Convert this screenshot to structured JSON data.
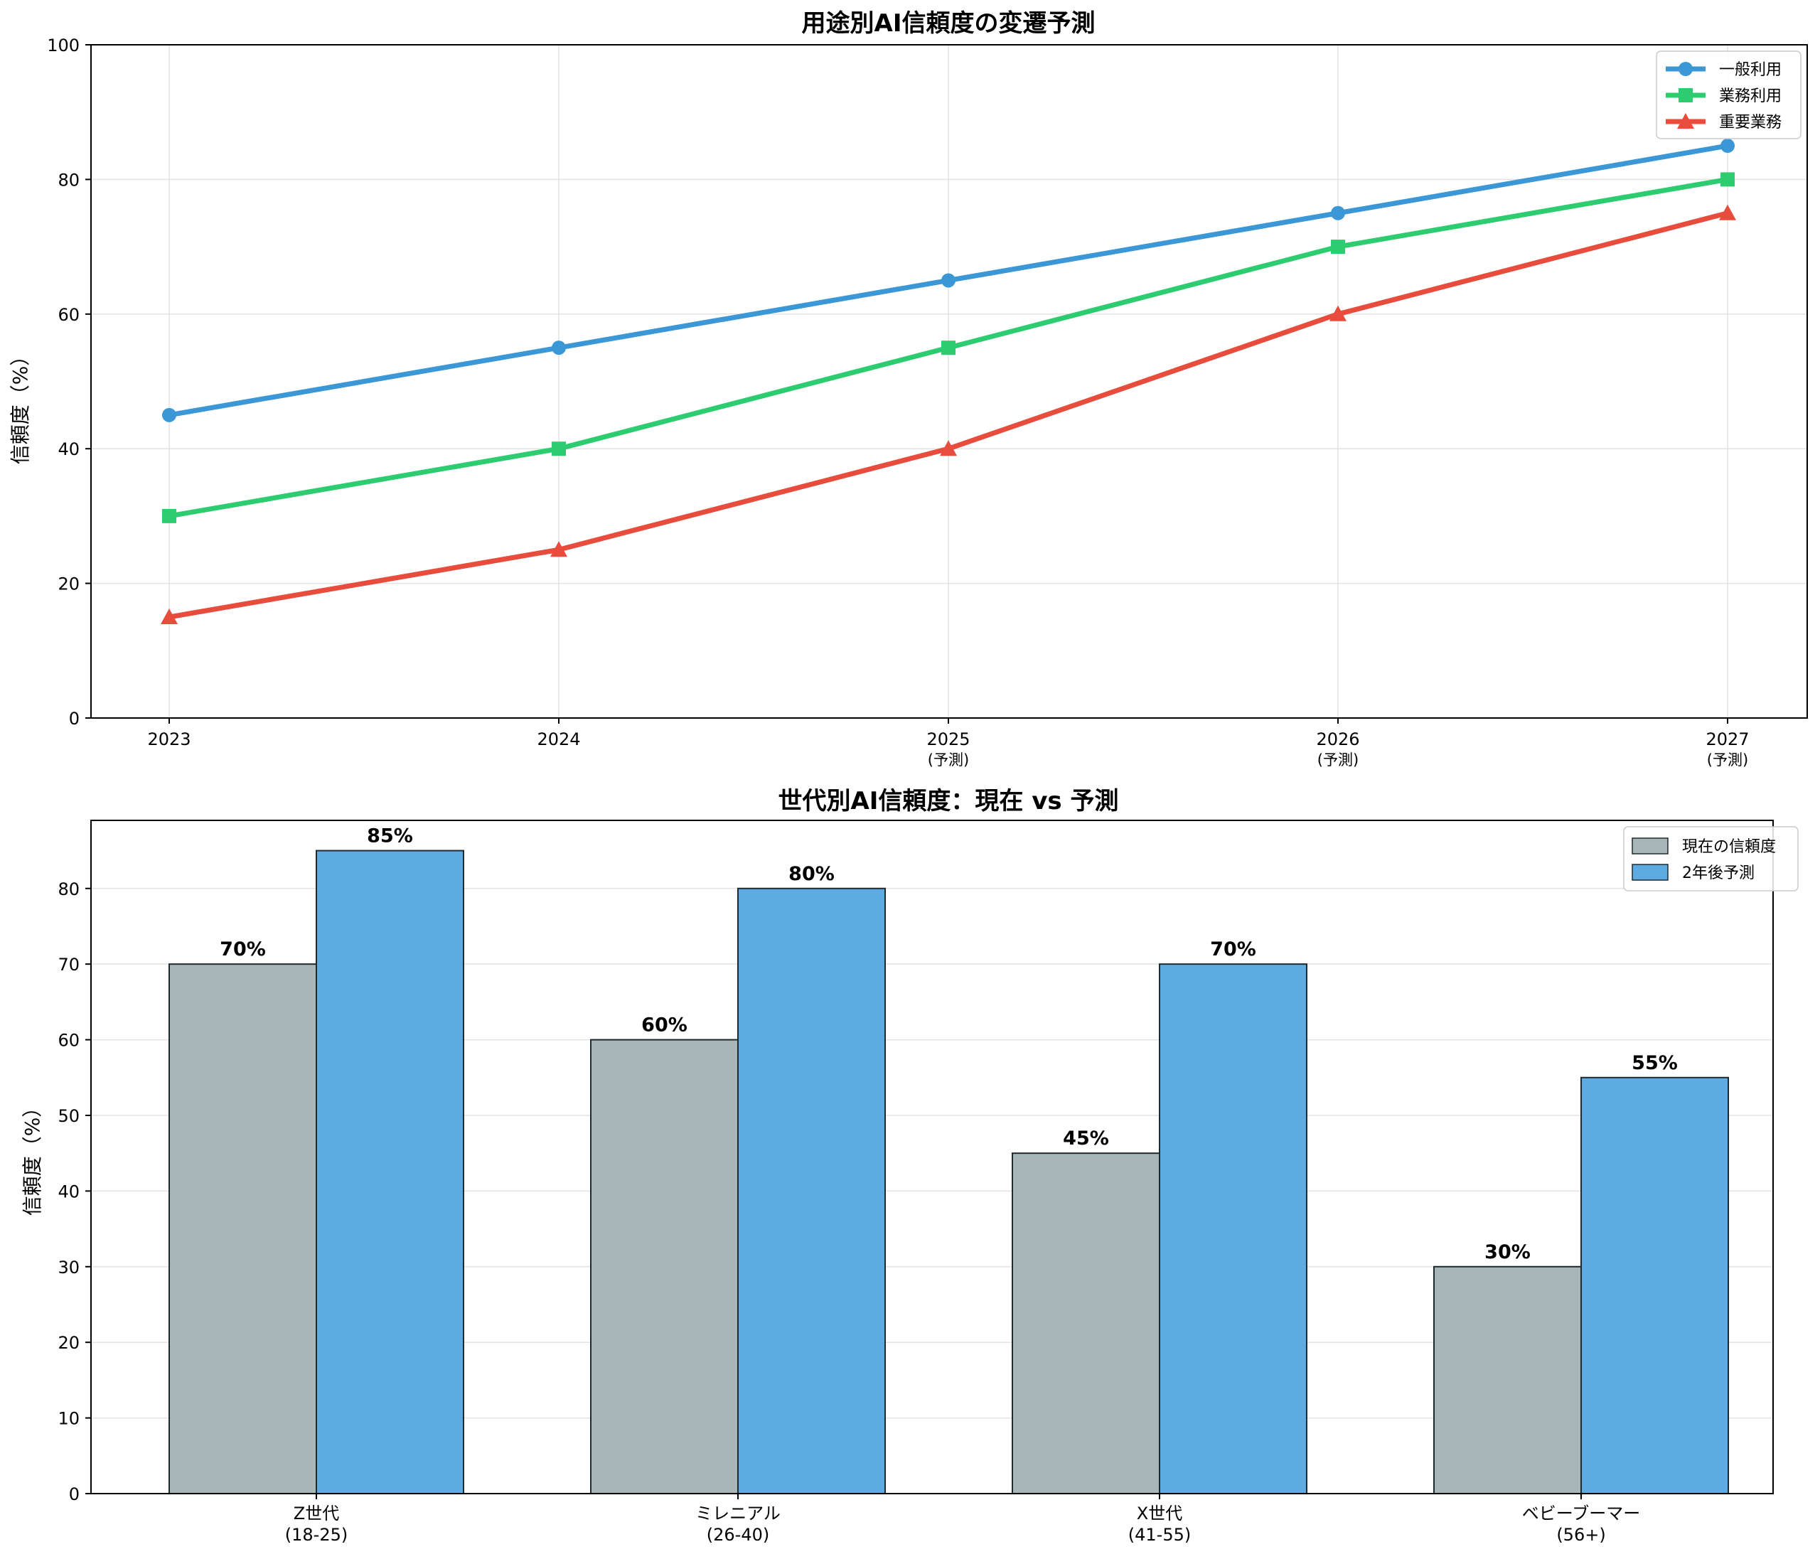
{
  "chart_data": [
    {
      "type": "line",
      "title": "用途別AI信頼度の変遷予測",
      "xlabel": "",
      "ylabel": "信頼度（%）",
      "x_ticks": [
        {
          "year": "2023",
          "note": ""
        },
        {
          "year": "2024",
          "note": ""
        },
        {
          "year": "2025",
          "note": "(予測)"
        },
        {
          "year": "2026",
          "note": "(予測)"
        },
        {
          "year": "2027",
          "note": "(予測)"
        }
      ],
      "ylim": [
        0,
        100
      ],
      "y_ticks": [
        "0",
        "20",
        "40",
        "60",
        "80",
        "100"
      ],
      "grid": true,
      "legend_position": "top-right",
      "series": [
        {
          "name": "一般利用",
          "values": [
            45,
            55,
            65,
            75,
            85
          ],
          "color": "#3b97d5",
          "marker": "circle"
        },
        {
          "name": "業務利用",
          "values": [
            30,
            40,
            55,
            70,
            80
          ],
          "color": "#2ecc71",
          "marker": "square"
        },
        {
          "name": "重要業務",
          "values": [
            15,
            25,
            40,
            60,
            75
          ],
          "color": "#e74c3c",
          "marker": "triangle"
        }
      ]
    },
    {
      "type": "bar",
      "title": "世代別AI信頼度：現在 vs 予測",
      "xlabel": "",
      "ylabel": "信頼度（%）",
      "categories": [
        {
          "name": "Z世代",
          "range": "(18-25)"
        },
        {
          "name": "ミレニアル",
          "range": "(26-40)"
        },
        {
          "name": "X世代",
          "range": "(41-55)"
        },
        {
          "name": "ベビーブーマー",
          "range": "(56+)"
        }
      ],
      "ylim": [
        0,
        89
      ],
      "y_ticks": [
        "0",
        "10",
        "20",
        "30",
        "40",
        "50",
        "60",
        "70",
        "80"
      ],
      "grid": true,
      "legend_position": "top-right",
      "series": [
        {
          "name": "現在の信頼度",
          "values": [
            70,
            60,
            45,
            30
          ],
          "labels": [
            "70%",
            "60%",
            "45%",
            "30%"
          ],
          "color": "#a8b6b7"
        },
        {
          "name": "2年後予測",
          "values": [
            85,
            80,
            70,
            55
          ],
          "labels": [
            "85%",
            "80%",
            "70%",
            "55%"
          ],
          "color": "#5dabe2"
        }
      ]
    }
  ]
}
